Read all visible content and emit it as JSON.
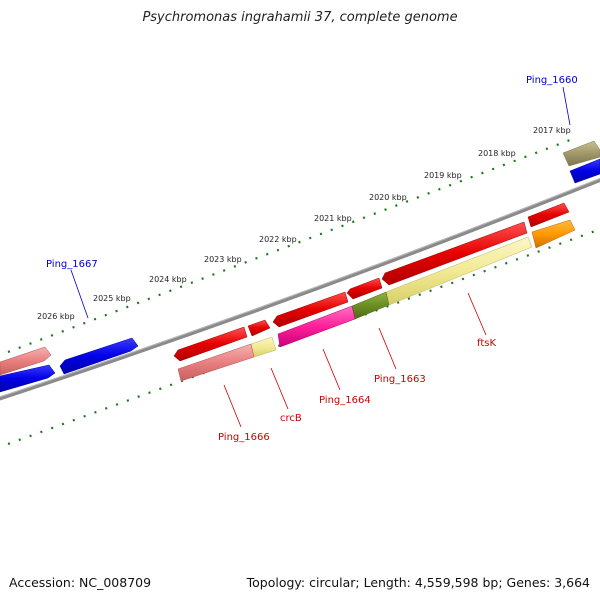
{
  "title": "Psychromonas ingrahamii 37, complete genome",
  "footer": {
    "accession": "Accession: NC_008709",
    "summary": "Topology: circular; Length: 4,559,598 bp; Genes: 3,664"
  },
  "scale_labels": [
    "2017 kbp",
    "2018 kbp",
    "2019 kbp",
    "2020 kbp",
    "2021 kbp",
    "2022 kbp",
    "2023 kbp",
    "2024 kbp",
    "2025 kbp",
    "2026 kbp"
  ],
  "gene_labels": {
    "top": [
      "Ping_1660",
      "Ping_1667"
    ],
    "bottom": [
      "ftsK",
      "Ping_1663",
      "Ping_1664",
      "crcB",
      "Ping_1666"
    ]
  },
  "colors": {
    "cds": "#ff0000",
    "gene": "#ee7f7f",
    "reverse_strand": "#0000ee",
    "backbone": "#888888",
    "tick": "#1a7a1a",
    "ftsK_gene": "#f2ea94",
    "ping1663_domain": "#6b8e23",
    "ping1664": "#ff1f9a",
    "ping1660": "#a0986a",
    "orange": "#ff9900"
  }
}
